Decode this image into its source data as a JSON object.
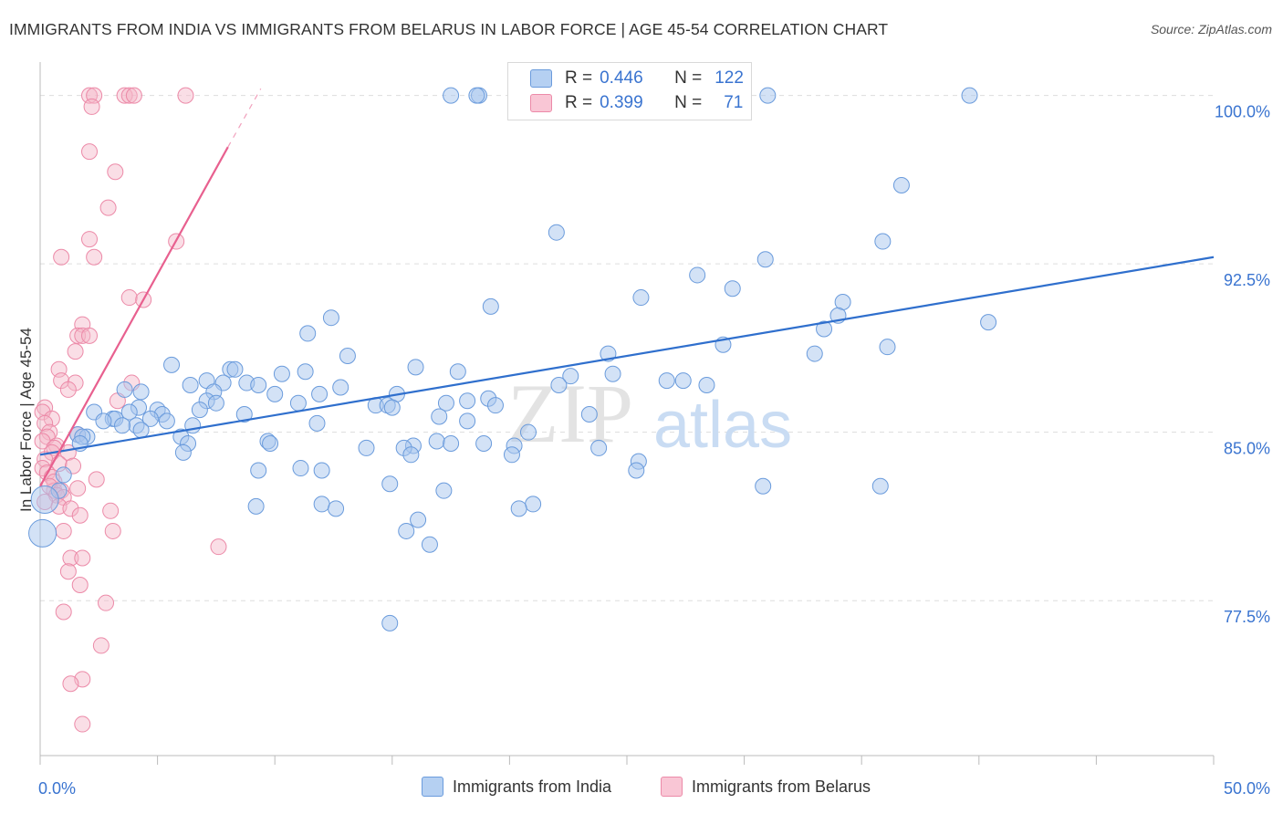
{
  "title": "IMMIGRANTS FROM INDIA VS IMMIGRANTS FROM BELARUS IN LABOR FORCE | AGE 45-54 CORRELATION CHART",
  "source": "Source: ZipAtlas.com",
  "watermark": {
    "zip": "ZIP",
    "atlas": "atlas"
  },
  "legend_top": {
    "r_label": "R =",
    "n_label": "N =",
    "india": {
      "r": "0.446",
      "n": "122"
    },
    "belarus": {
      "r": "0.399",
      "n": "71"
    }
  },
  "colors": {
    "india_fill": "#a7c6ee",
    "india_stroke": "#6a9bdc",
    "india_line": "#2f6fcd",
    "belarus_fill": "#f5b5c8",
    "belarus_stroke": "#ec8aa8",
    "belarus_line": "#e8608f",
    "axis_label": "#3a74d0",
    "grid": "#dddddd"
  },
  "chart_data": {
    "type": "scatter",
    "title": "IMMIGRANTS FROM INDIA VS IMMIGRANTS FROM BELARUS IN LABOR FORCE | AGE 45-54 CORRELATION CHART",
    "xlabel": "",
    "ylabel": "In Labor Force | Age 45-54",
    "xlim": [
      0,
      50
    ],
    "ylim": [
      70.6,
      101.0
    ],
    "x_tick_labels": [
      "0.0%",
      "50.0%"
    ],
    "y_ticks": [
      77.5,
      85.0,
      92.5,
      100.0
    ],
    "y_tick_labels": [
      "77.5%",
      "85.0%",
      "92.5%",
      "100.0%"
    ],
    "series": [
      {
        "name": "Immigrants from India",
        "trend": {
          "x": [
            0,
            50
          ],
          "y": [
            84.0,
            92.8
          ]
        },
        "points": [
          [
            17.5,
            100
          ],
          [
            18.7,
            100
          ],
          [
            18.6,
            100
          ],
          [
            31.0,
            100
          ],
          [
            39.6,
            100
          ],
          [
            36.7,
            96
          ],
          [
            22.0,
            93.9
          ],
          [
            35.9,
            93.5
          ],
          [
            30.9,
            92.7
          ],
          [
            28.0,
            92.0
          ],
          [
            29.5,
            91.4
          ],
          [
            25.6,
            91.0
          ],
          [
            19.2,
            90.6
          ],
          [
            34.2,
            90.8
          ],
          [
            12.4,
            90.1
          ],
          [
            34.0,
            90.2
          ],
          [
            40.4,
            89.9
          ],
          [
            33.4,
            89.6
          ],
          [
            11.4,
            89.4
          ],
          [
            29.1,
            88.9
          ],
          [
            36.1,
            88.8
          ],
          [
            33.0,
            88.5
          ],
          [
            13.1,
            88.4
          ],
          [
            24.2,
            88.5
          ],
          [
            5.6,
            88.0
          ],
          [
            16.0,
            87.9
          ],
          [
            8.1,
            87.8
          ],
          [
            8.3,
            87.8
          ],
          [
            10.3,
            87.6
          ],
          [
            11.3,
            87.7
          ],
          [
            17.8,
            87.7
          ],
          [
            22.6,
            87.5
          ],
          [
            24.4,
            87.6
          ],
          [
            7.1,
            87.3
          ],
          [
            6.4,
            87.1
          ],
          [
            7.8,
            87.2
          ],
          [
            8.8,
            87.2
          ],
          [
            9.3,
            87.1
          ],
          [
            12.8,
            87.0
          ],
          [
            26.7,
            87.3
          ],
          [
            27.4,
            87.3
          ],
          [
            28.4,
            87.1
          ],
          [
            22.1,
            87.1
          ],
          [
            4.3,
            86.8
          ],
          [
            3.6,
            86.9
          ],
          [
            7.4,
            86.8
          ],
          [
            10.0,
            86.7
          ],
          [
            11.9,
            86.7
          ],
          [
            15.2,
            86.7
          ],
          [
            19.1,
            86.5
          ],
          [
            7.1,
            86.4
          ],
          [
            7.5,
            86.3
          ],
          [
            11.0,
            86.3
          ],
          [
            14.3,
            86.2
          ],
          [
            14.8,
            86.2
          ],
          [
            17.3,
            86.3
          ],
          [
            18.2,
            86.4
          ],
          [
            15.0,
            86.1
          ],
          [
            19.4,
            86.2
          ],
          [
            4.2,
            86.1
          ],
          [
            5.0,
            86.0
          ],
          [
            3.8,
            85.9
          ],
          [
            6.8,
            86.0
          ],
          [
            5.2,
            85.8
          ],
          [
            8.7,
            85.8
          ],
          [
            23.4,
            85.8
          ],
          [
            17.0,
            85.7
          ],
          [
            2.3,
            85.9
          ],
          [
            3.1,
            85.6
          ],
          [
            3.2,
            85.6
          ],
          [
            4.7,
            85.6
          ],
          [
            2.7,
            85.5
          ],
          [
            5.4,
            85.5
          ],
          [
            18.2,
            85.5
          ],
          [
            4.1,
            85.3
          ],
          [
            3.5,
            85.3
          ],
          [
            6.5,
            85.3
          ],
          [
            4.3,
            85.1
          ],
          [
            11.8,
            85.4
          ],
          [
            20.8,
            85.0
          ],
          [
            1.6,
            84.9
          ],
          [
            2.0,
            84.8
          ],
          [
            1.8,
            84.8
          ],
          [
            6.0,
            84.8
          ],
          [
            9.7,
            84.6
          ],
          [
            9.8,
            84.5
          ],
          [
            16.9,
            84.6
          ],
          [
            17.5,
            84.5
          ],
          [
            18.9,
            84.5
          ],
          [
            6.3,
            84.5
          ],
          [
            15.9,
            84.4
          ],
          [
            20.2,
            84.4
          ],
          [
            23.8,
            84.3
          ],
          [
            13.9,
            84.3
          ],
          [
            15.5,
            84.3
          ],
          [
            6.1,
            84.1
          ],
          [
            15.8,
            84.0
          ],
          [
            20.1,
            84.0
          ],
          [
            1.7,
            84.5
          ],
          [
            25.5,
            83.7
          ],
          [
            11.1,
            83.4
          ],
          [
            25.4,
            83.3
          ],
          [
            9.3,
            83.3
          ],
          [
            12.0,
            83.3
          ],
          [
            1.0,
            83.1
          ],
          [
            14.9,
            82.7
          ],
          [
            30.8,
            82.6
          ],
          [
            35.8,
            82.6
          ],
          [
            17.2,
            82.4
          ],
          [
            0.8,
            82.4
          ],
          [
            0.2,
            82.0
          ],
          [
            21.0,
            81.8
          ],
          [
            12.0,
            81.8
          ],
          [
            9.2,
            81.7
          ],
          [
            12.6,
            81.6
          ],
          [
            20.4,
            81.6
          ],
          [
            16.1,
            81.1
          ],
          [
            15.6,
            80.6
          ],
          [
            16.6,
            80.0
          ],
          [
            0.1,
            80.5
          ],
          [
            14.9,
            76.5
          ]
        ]
      },
      {
        "name": "Immigrants from Belarus",
        "trend": {
          "x": [
            0,
            8.0
          ],
          "y": [
            82.6,
            97.7
          ]
        },
        "trend_dashed": {
          "x": [
            8.0,
            9.4
          ],
          "y": [
            97.7,
            100.3
          ]
        },
        "points": [
          [
            2.1,
            100
          ],
          [
            2.3,
            100
          ],
          [
            3.6,
            100
          ],
          [
            3.8,
            100
          ],
          [
            4.0,
            100
          ],
          [
            6.2,
            100
          ],
          [
            2.2,
            99.5
          ],
          [
            2.1,
            97.5
          ],
          [
            3.2,
            96.6
          ],
          [
            2.9,
            95.0
          ],
          [
            2.1,
            93.6
          ],
          [
            5.8,
            93.5
          ],
          [
            0.9,
            92.8
          ],
          [
            2.3,
            92.8
          ],
          [
            3.8,
            91.0
          ],
          [
            4.4,
            90.9
          ],
          [
            1.8,
            89.8
          ],
          [
            1.6,
            89.3
          ],
          [
            1.8,
            89.3
          ],
          [
            2.1,
            89.3
          ],
          [
            1.5,
            88.6
          ],
          [
            0.8,
            87.8
          ],
          [
            0.9,
            87.3
          ],
          [
            1.5,
            87.2
          ],
          [
            3.9,
            87.2
          ],
          [
            1.2,
            86.9
          ],
          [
            0.2,
            86.1
          ],
          [
            0.1,
            85.9
          ],
          [
            3.3,
            86.4
          ],
          [
            0.5,
            85.6
          ],
          [
            0.2,
            85.4
          ],
          [
            0.4,
            85.0
          ],
          [
            0.3,
            84.8
          ],
          [
            0.1,
            84.6
          ],
          [
            0.7,
            84.4
          ],
          [
            0.6,
            84.3
          ],
          [
            1.6,
            84.9
          ],
          [
            0.5,
            84.1
          ],
          [
            1.2,
            84.1
          ],
          [
            0.2,
            83.8
          ],
          [
            0.8,
            83.6
          ],
          [
            1.4,
            83.5
          ],
          [
            0.1,
            83.4
          ],
          [
            0.3,
            83.2
          ],
          [
            0.5,
            83.0
          ],
          [
            0.6,
            82.8
          ],
          [
            0.6,
            82.4
          ],
          [
            2.4,
            82.9
          ],
          [
            0.4,
            82.6
          ],
          [
            1.6,
            82.5
          ],
          [
            0.9,
            82.4
          ],
          [
            0.7,
            82.2
          ],
          [
            1.0,
            82.1
          ],
          [
            0.2,
            81.9
          ],
          [
            0.8,
            81.7
          ],
          [
            1.3,
            81.6
          ],
          [
            3.0,
            81.5
          ],
          [
            1.7,
            81.3
          ],
          [
            1.0,
            80.6
          ],
          [
            3.1,
            80.6
          ],
          [
            7.6,
            79.9
          ],
          [
            1.3,
            79.4
          ],
          [
            1.8,
            79.4
          ],
          [
            1.2,
            78.8
          ],
          [
            1.7,
            78.2
          ],
          [
            2.8,
            77.4
          ],
          [
            1.0,
            77.0
          ],
          [
            2.6,
            75.5
          ],
          [
            1.8,
            74.0
          ],
          [
            1.3,
            73.8
          ],
          [
            1.8,
            72.0
          ]
        ]
      }
    ],
    "legend_entries": [
      "Immigrants from India",
      "Immigrants from Belarus"
    ]
  }
}
